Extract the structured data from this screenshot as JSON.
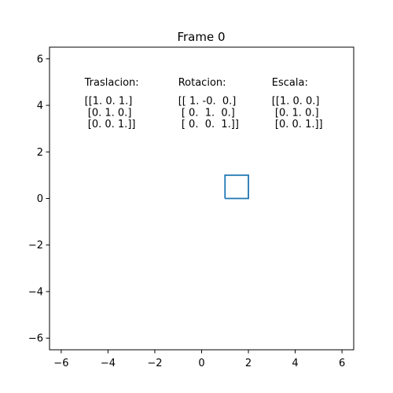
{
  "chart_data": {
    "type": "line",
    "title": "Frame 0",
    "xlabel": "",
    "ylabel": "",
    "xlim": [
      -6.5,
      6.5
    ],
    "ylim": [
      -6.5,
      6.5
    ],
    "xticks": [
      -6,
      -4,
      -2,
      0,
      2,
      4,
      6
    ],
    "yticks": [
      -6,
      -4,
      -2,
      0,
      2,
      4,
      6
    ],
    "xtick_labels": [
      "−6",
      "−4",
      "−2",
      "0",
      "2",
      "4",
      "6"
    ],
    "ytick_labels": [
      "−6",
      "−4",
      "−2",
      "0",
      "2",
      "4",
      "6"
    ],
    "grid": false,
    "series": [
      {
        "x": [
          1,
          2,
          2,
          1,
          1
        ],
        "y": [
          0,
          0,
          1,
          1,
          0
        ],
        "color": "#1f77b4"
      }
    ],
    "annotations": [
      {
        "x": -5,
        "y": 5,
        "text": "Traslacion:"
      },
      {
        "x": -5,
        "y": 4.2,
        "text": "[[1. 0. 1.]"
      },
      {
        "x": -5,
        "y": 3.7,
        "text": " [0. 1. 0.]"
      },
      {
        "x": -5,
        "y": 3.2,
        "text": " [0. 0. 1.]]"
      },
      {
        "x": -1,
        "y": 5,
        "text": "Rotacion:"
      },
      {
        "x": -1,
        "y": 4.2,
        "text": "[[ 1. -0.  0.]"
      },
      {
        "x": -1,
        "y": 3.7,
        "text": " [ 0.  1.  0.]"
      },
      {
        "x": -1,
        "y": 3.2,
        "text": " [ 0.  0.  1.]]"
      },
      {
        "x": 3,
        "y": 5,
        "text": "Escala:"
      },
      {
        "x": 3,
        "y": 4.2,
        "text": "[[1. 0. 0.]"
      },
      {
        "x": 3,
        "y": 3.7,
        "text": " [0. 1. 0.]"
      },
      {
        "x": 3,
        "y": 3.2,
        "text": " [0. 0. 1.]]"
      }
    ]
  }
}
